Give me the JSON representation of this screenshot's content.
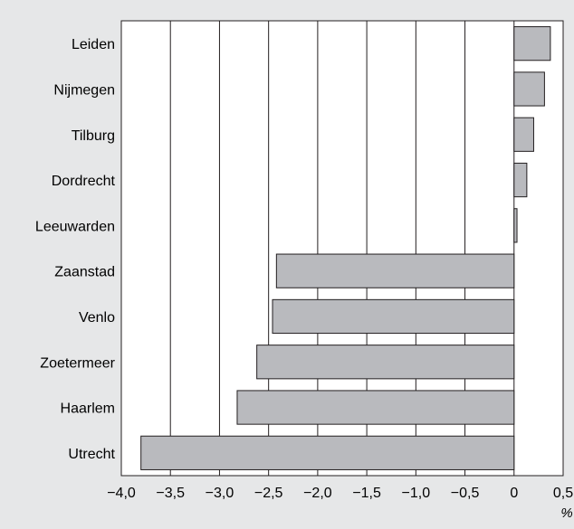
{
  "chart_data": {
    "type": "bar",
    "orientation": "horizontal",
    "categories": [
      "Leiden",
      "Nijmegen",
      "Tilburg",
      "Dordrecht",
      "Leeuwarden",
      "Zaanstad",
      "Venlo",
      "Zoetermeer",
      "Haarlem",
      "Utrecht"
    ],
    "values": [
      0.37,
      0.31,
      0.2,
      0.13,
      0.03,
      -2.42,
      -2.46,
      -2.62,
      -2.82,
      -3.8
    ],
    "xlim": [
      -4.0,
      0.5
    ],
    "xticks": [
      -4.0,
      -3.5,
      -3.0,
      -2.5,
      -2.0,
      -1.5,
      -1.0,
      -0.5,
      0,
      0.5
    ],
    "xtick_labels": [
      "−4,0",
      "−3,5",
      "−3,0",
      "−2,5",
      "−2,0",
      "−1,5",
      "−1,0",
      "−0,5",
      "0",
      "0,5"
    ],
    "x_unit": "%",
    "grid": "vertical",
    "colors": {
      "background": "#e6e7e8",
      "plot_area": "#ffffff",
      "bar_fill": "#b9babe",
      "bar_stroke": "#231f20"
    }
  }
}
